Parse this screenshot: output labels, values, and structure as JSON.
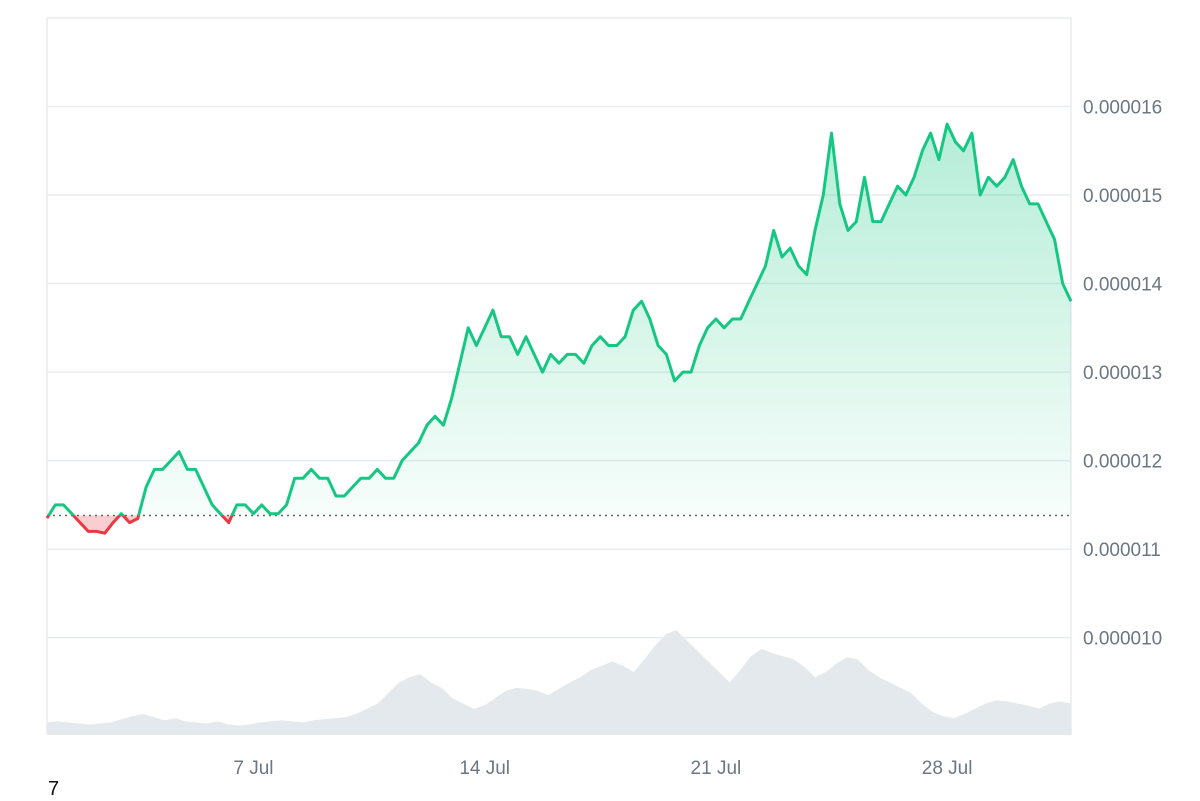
{
  "footer_note": "7",
  "colors": {
    "up_line": "#16c784",
    "down_line": "#ea3943",
    "up_fill_top": "#16c784",
    "down_fill": "#ea3943",
    "grid": "#e9ecef",
    "baseline_dots": "#666666",
    "volume": "#e4e9ee",
    "axis_text": "#6b7785"
  },
  "chart_data": {
    "type": "area",
    "title": "",
    "xlabel": "",
    "ylabel": "",
    "ylim": [
      8.9e-06,
      1.7e-05
    ],
    "xlim": [
      0,
      31
    ],
    "grid": true,
    "y_axis_position": "right",
    "y_ticks": [
      {
        "value": 1.6e-05,
        "label": "0.000016"
      },
      {
        "value": 1.5e-05,
        "label": "0.000015"
      },
      {
        "value": 1.4e-05,
        "label": "0.000014"
      },
      {
        "value": 1.3e-05,
        "label": "0.000013"
      },
      {
        "value": 1.2e-05,
        "label": "0.000012"
      },
      {
        "value": 1.1e-05,
        "label": "0.000011"
      },
      {
        "value": 1e-05,
        "label": "0.000010"
      }
    ],
    "x_ticks": [
      {
        "value": 6.25,
        "label": "7 Jul"
      },
      {
        "value": 13.25,
        "label": "14 Jul"
      },
      {
        "value": 20.25,
        "label": "21 Jul"
      },
      {
        "value": 27.25,
        "label": "28 Jul"
      }
    ],
    "baseline": 1.138e-05,
    "series": [
      {
        "type": "line",
        "points": [
          [
            0.0,
            1.135e-05
          ],
          [
            0.25,
            1.15e-05
          ],
          [
            0.5,
            1.15e-05
          ],
          [
            0.75,
            1.14e-05
          ],
          [
            1.0,
            1.13e-05
          ],
          [
            1.25,
            1.12e-05
          ],
          [
            1.5,
            1.12e-05
          ],
          [
            1.75,
            1.118e-05
          ],
          [
            2.0,
            1.13e-05
          ],
          [
            2.25,
            1.14e-05
          ],
          [
            2.5,
            1.13e-05
          ],
          [
            2.75,
            1.1346e-05
          ],
          [
            3.0,
            1.17e-05
          ],
          [
            3.25,
            1.19e-05
          ],
          [
            3.5,
            1.19e-05
          ],
          [
            3.75,
            1.2e-05
          ],
          [
            4.0,
            1.21e-05
          ],
          [
            4.25,
            1.19e-05
          ],
          [
            4.5,
            1.19e-05
          ],
          [
            4.75,
            1.17e-05
          ],
          [
            5.0,
            1.15e-05
          ],
          [
            5.25,
            1.14e-05
          ],
          [
            5.5,
            1.13e-05
          ],
          [
            5.75,
            1.15e-05
          ],
          [
            6.0,
            1.15e-05
          ],
          [
            6.25,
            1.14e-05
          ],
          [
            6.5,
            1.15e-05
          ],
          [
            6.75,
            1.14e-05
          ],
          [
            7.0,
            1.14e-05
          ],
          [
            7.25,
            1.15e-05
          ],
          [
            7.5,
            1.18e-05
          ],
          [
            7.75,
            1.18e-05
          ],
          [
            8.0,
            1.19e-05
          ],
          [
            8.25,
            1.18e-05
          ],
          [
            8.5,
            1.18e-05
          ],
          [
            8.75,
            1.16e-05
          ],
          [
            9.0,
            1.16e-05
          ],
          [
            9.25,
            1.17e-05
          ],
          [
            9.5,
            1.18e-05
          ],
          [
            9.75,
            1.18e-05
          ],
          [
            10.0,
            1.19e-05
          ],
          [
            10.25,
            1.18e-05
          ],
          [
            10.5,
            1.18e-05
          ],
          [
            10.75,
            1.2e-05
          ],
          [
            11.0,
            1.21e-05
          ],
          [
            11.25,
            1.22e-05
          ],
          [
            11.5,
            1.24e-05
          ],
          [
            11.75,
            1.25e-05
          ],
          [
            12.0,
            1.24e-05
          ],
          [
            12.25,
            1.27e-05
          ],
          [
            12.5,
            1.31e-05
          ],
          [
            12.75,
            1.35e-05
          ],
          [
            13.0,
            1.33e-05
          ],
          [
            13.25,
            1.35e-05
          ],
          [
            13.5,
            1.37e-05
          ],
          [
            13.75,
            1.34e-05
          ],
          [
            14.0,
            1.34e-05
          ],
          [
            14.25,
            1.32e-05
          ],
          [
            14.5,
            1.34e-05
          ],
          [
            14.75,
            1.32e-05
          ],
          [
            15.0,
            1.3e-05
          ],
          [
            15.25,
            1.32e-05
          ],
          [
            15.5,
            1.31e-05
          ],
          [
            15.75,
            1.32e-05
          ],
          [
            16.0,
            1.32e-05
          ],
          [
            16.25,
            1.31e-05
          ],
          [
            16.5,
            1.33e-05
          ],
          [
            16.75,
            1.34e-05
          ],
          [
            17.0,
            1.33e-05
          ],
          [
            17.25,
            1.33e-05
          ],
          [
            17.5,
            1.34e-05
          ],
          [
            17.75,
            1.37e-05
          ],
          [
            18.0,
            1.38e-05
          ],
          [
            18.25,
            1.36e-05
          ],
          [
            18.5,
            1.33e-05
          ],
          [
            18.75,
            1.32e-05
          ],
          [
            19.0,
            1.29e-05
          ],
          [
            19.25,
            1.3e-05
          ],
          [
            19.5,
            1.3e-05
          ],
          [
            19.75,
            1.33e-05
          ],
          [
            20.0,
            1.35e-05
          ],
          [
            20.25,
            1.36e-05
          ],
          [
            20.5,
            1.35e-05
          ],
          [
            20.75,
            1.36e-05
          ],
          [
            21.0,
            1.36e-05
          ],
          [
            21.25,
            1.38e-05
          ],
          [
            21.5,
            1.4e-05
          ],
          [
            21.75,
            1.42e-05
          ],
          [
            22.0,
            1.46e-05
          ],
          [
            22.25,
            1.43e-05
          ],
          [
            22.5,
            1.44e-05
          ],
          [
            22.75,
            1.42e-05
          ],
          [
            23.0,
            1.41e-05
          ],
          [
            23.25,
            1.46e-05
          ],
          [
            23.5,
            1.5e-05
          ],
          [
            23.75,
            1.57e-05
          ],
          [
            24.0,
            1.49e-05
          ],
          [
            24.25,
            1.46e-05
          ],
          [
            24.5,
            1.47e-05
          ],
          [
            24.75,
            1.52e-05
          ],
          [
            25.0,
            1.47e-05
          ],
          [
            25.25,
            1.47e-05
          ],
          [
            25.5,
            1.49e-05
          ],
          [
            25.75,
            1.51e-05
          ],
          [
            26.0,
            1.5e-05
          ],
          [
            26.25,
            1.52e-05
          ],
          [
            26.5,
            1.55e-05
          ],
          [
            26.75,
            1.57e-05
          ],
          [
            27.0,
            1.54e-05
          ],
          [
            27.25,
            1.58e-05
          ],
          [
            27.5,
            1.56e-05
          ],
          [
            27.75,
            1.55e-05
          ],
          [
            28.0,
            1.57e-05
          ],
          [
            28.25,
            1.5e-05
          ],
          [
            28.5,
            1.52e-05
          ],
          [
            28.75,
            1.51e-05
          ],
          [
            29.0,
            1.52e-05
          ],
          [
            29.25,
            1.54e-05
          ],
          [
            29.5,
            1.51e-05
          ],
          [
            29.75,
            1.49e-05
          ],
          [
            30.0,
            1.49e-05
          ],
          [
            30.25,
            1.47e-05
          ],
          [
            30.5,
            1.45e-05
          ],
          [
            30.75,
            1.4e-05
          ],
          [
            31.0,
            1.38e-05
          ]
        ]
      }
    ],
    "volume": [
      0.12,
      0.13,
      0.12,
      0.11,
      0.1,
      0.11,
      0.12,
      0.15,
      0.18,
      0.2,
      0.17,
      0.14,
      0.16,
      0.13,
      0.12,
      0.11,
      0.13,
      0.1,
      0.09,
      0.1,
      0.12,
      0.13,
      0.14,
      0.13,
      0.12,
      0.14,
      0.15,
      0.16,
      0.17,
      0.2,
      0.25,
      0.3,
      0.4,
      0.5,
      0.55,
      0.58,
      0.5,
      0.45,
      0.35,
      0.3,
      0.25,
      0.28,
      0.35,
      0.42,
      0.45,
      0.44,
      0.42,
      0.38,
      0.44,
      0.5,
      0.55,
      0.62,
      0.66,
      0.7,
      0.66,
      0.6,
      0.72,
      0.85,
      0.96,
      1.0,
      0.9,
      0.8,
      0.7,
      0.6,
      0.5,
      0.62,
      0.75,
      0.82,
      0.78,
      0.75,
      0.72,
      0.65,
      0.55,
      0.6,
      0.68,
      0.74,
      0.72,
      0.62,
      0.55,
      0.5,
      0.45,
      0.4,
      0.3,
      0.22,
      0.18,
      0.16,
      0.2,
      0.25,
      0.3,
      0.33,
      0.32,
      0.3,
      0.28,
      0.25,
      0.3,
      0.32,
      0.3
    ]
  }
}
